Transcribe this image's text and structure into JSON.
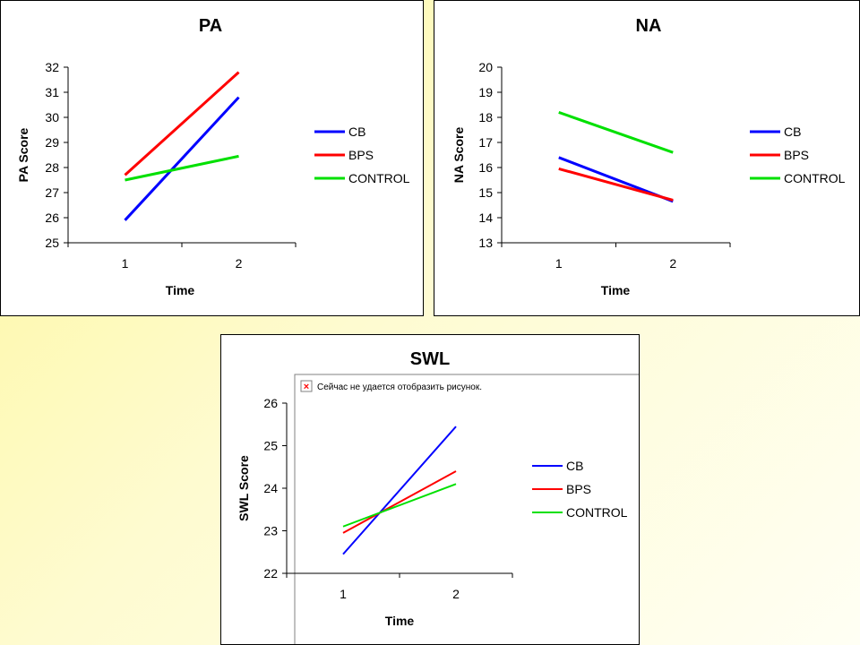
{
  "chart_data": [
    {
      "type": "line",
      "title": "PA",
      "xlabel": "Time",
      "ylabel": "PA Score",
      "categories": [
        "1",
        "2"
      ],
      "ylim": [
        25,
        32
      ],
      "yticks": [
        25,
        26,
        27,
        28,
        29,
        30,
        31,
        32
      ],
      "legend_position": "right",
      "series": [
        {
          "name": "CB",
          "color": "#0000ff",
          "values": [
            25.9,
            30.8
          ]
        },
        {
          "name": "BPS",
          "color": "#ff0000",
          "values": [
            27.7,
            31.8
          ]
        },
        {
          "name": "CONTROL",
          "color": "#00e000",
          "values": [
            27.5,
            28.45
          ]
        }
      ]
    },
    {
      "type": "line",
      "title": "NA",
      "xlabel": "Time",
      "ylabel": "NA Score",
      "categories": [
        "1",
        "2"
      ],
      "ylim": [
        13,
        20
      ],
      "yticks": [
        13,
        14,
        15,
        16,
        17,
        18,
        19,
        20
      ],
      "legend_position": "right",
      "series": [
        {
          "name": "CB",
          "color": "#0000ff",
          "values": [
            16.4,
            14.65
          ]
        },
        {
          "name": "BPS",
          "color": "#ff0000",
          "values": [
            15.95,
            14.7
          ]
        },
        {
          "name": "CONTROL",
          "color": "#00e000",
          "values": [
            18.2,
            16.6
          ]
        }
      ]
    },
    {
      "type": "line",
      "title": "SWL",
      "xlabel": "Time",
      "ylabel": "SWL Score",
      "categories": [
        "1",
        "2"
      ],
      "ylim": [
        22,
        26
      ],
      "yticks": [
        22,
        23,
        24,
        25,
        26
      ],
      "legend_position": "right",
      "series": [
        {
          "name": "CB",
          "color": "#0000ff",
          "values": [
            22.45,
            25.45
          ]
        },
        {
          "name": "BPS",
          "color": "#ff0000",
          "values": [
            22.95,
            24.4
          ]
        },
        {
          "name": "CONTROL",
          "color": "#00e000",
          "values": [
            23.1,
            24.1
          ]
        }
      ]
    }
  ],
  "broken_image": {
    "icon": "broken-image-icon",
    "text": "Сейчас не удается отобразить рисунок."
  }
}
